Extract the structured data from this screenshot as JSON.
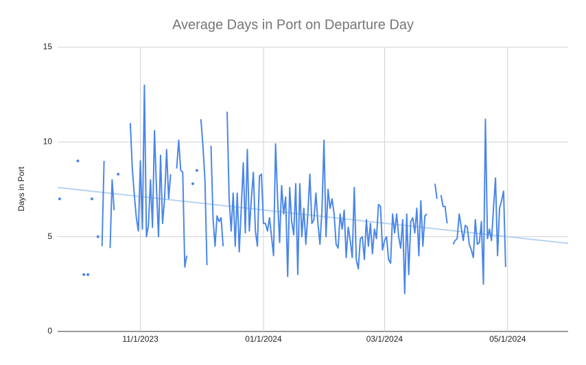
{
  "chart_data": {
    "type": "line",
    "title": "Average Days in Port on Departure Day",
    "y_label": "Days in Port",
    "xlim": [
      "2023-09-21",
      "2024-05-31"
    ],
    "xticks": [
      {
        "value": "2023-11-01",
        "label": "11/1/2023"
      },
      {
        "value": "2024-01-01",
        "label": "01/1/2024"
      },
      {
        "value": "2024-03-01",
        "label": "03/1/2024"
      },
      {
        "value": "2024-05-01",
        "label": "05/1/2024"
      }
    ],
    "ylim": [
      0,
      15
    ],
    "yticks": [
      0,
      5,
      10,
      15
    ],
    "grid": true,
    "trendline": {
      "color": "#b7d3f2",
      "values": [
        7.6,
        4.65
      ]
    },
    "x": [
      "2023-09-22",
      "2023-09-23",
      "2023-09-24",
      "2023-09-25",
      "2023-09-26",
      "2023-09-27",
      "2023-09-28",
      "2023-09-29",
      "2023-09-30",
      "2023-10-01",
      "2023-10-02",
      "2023-10-03",
      "2023-10-04",
      "2023-10-05",
      "2023-10-06",
      "2023-10-07",
      "2023-10-08",
      "2023-10-09",
      "2023-10-10",
      "2023-10-11",
      "2023-10-12",
      "2023-10-13",
      "2023-10-14",
      "2023-10-15",
      "2023-10-16",
      "2023-10-17",
      "2023-10-18",
      "2023-10-19",
      "2023-10-20",
      "2023-10-21",
      "2023-10-22",
      "2023-10-23",
      "2023-10-24",
      "2023-10-25",
      "2023-10-26",
      "2023-10-27",
      "2023-10-28",
      "2023-10-29",
      "2023-10-30",
      "2023-10-31",
      "2023-11-01",
      "2023-11-02",
      "2023-11-03",
      "2023-11-04",
      "2023-11-05",
      "2023-11-06",
      "2023-11-07",
      "2023-11-08",
      "2023-11-09",
      "2023-11-10",
      "2023-11-11",
      "2023-11-12",
      "2023-11-13",
      "2023-11-14",
      "2023-11-15",
      "2023-11-16",
      "2023-11-17",
      "2023-11-18",
      "2023-11-19",
      "2023-11-20",
      "2023-11-21",
      "2023-11-22",
      "2023-11-23",
      "2023-11-24",
      "2023-11-25",
      "2023-11-26",
      "2023-11-27",
      "2023-11-28",
      "2023-11-29",
      "2023-11-30",
      "2023-12-01",
      "2023-12-02",
      "2023-12-03",
      "2023-12-04",
      "2023-12-05",
      "2023-12-06",
      "2023-12-07",
      "2023-12-08",
      "2023-12-09",
      "2023-12-10",
      "2023-12-11",
      "2023-12-12",
      "2023-12-13",
      "2023-12-14",
      "2023-12-15",
      "2023-12-16",
      "2023-12-17",
      "2023-12-18",
      "2023-12-19",
      "2023-12-20",
      "2023-12-21",
      "2023-12-22",
      "2023-12-23",
      "2023-12-24",
      "2023-12-25",
      "2023-12-26",
      "2023-12-27",
      "2023-12-28",
      "2023-12-29",
      "2023-12-30",
      "2023-12-31",
      "2024-01-01",
      "2024-01-02",
      "2024-01-03",
      "2024-01-04",
      "2024-01-05",
      "2024-01-06",
      "2024-01-07",
      "2024-01-08",
      "2024-01-09",
      "2024-01-10",
      "2024-01-11",
      "2024-01-12",
      "2024-01-13",
      "2024-01-14",
      "2024-01-15",
      "2024-01-16",
      "2024-01-17",
      "2024-01-18",
      "2024-01-19",
      "2024-01-20",
      "2024-01-21",
      "2024-01-22",
      "2024-01-23",
      "2024-01-24",
      "2024-01-25",
      "2024-01-26",
      "2024-01-27",
      "2024-01-28",
      "2024-01-29",
      "2024-01-30",
      "2024-01-31",
      "2024-02-01",
      "2024-02-02",
      "2024-02-03",
      "2024-02-04",
      "2024-02-05",
      "2024-02-06",
      "2024-02-07",
      "2024-02-08",
      "2024-02-09",
      "2024-02-10",
      "2024-02-11",
      "2024-02-12",
      "2024-02-13",
      "2024-02-14",
      "2024-02-15",
      "2024-02-16",
      "2024-02-17",
      "2024-02-18",
      "2024-02-19",
      "2024-02-20",
      "2024-02-21",
      "2024-02-22",
      "2024-02-23",
      "2024-02-24",
      "2024-02-25",
      "2024-02-26",
      "2024-02-27",
      "2024-02-28",
      "2024-02-29",
      "2024-03-01",
      "2024-03-02",
      "2024-03-03",
      "2024-03-04",
      "2024-03-05",
      "2024-03-06",
      "2024-03-07",
      "2024-03-08",
      "2024-03-09",
      "2024-03-10",
      "2024-03-11",
      "2024-03-12",
      "2024-03-13",
      "2024-03-14",
      "2024-03-15",
      "2024-03-16",
      "2024-03-17",
      "2024-03-18",
      "2024-03-19",
      "2024-03-20",
      "2024-03-21",
      "2024-03-22",
      "2024-03-23",
      "2024-03-24",
      "2024-03-25",
      "2024-03-26",
      "2024-03-27",
      "2024-03-28",
      "2024-03-29",
      "2024-03-30",
      "2024-03-31",
      "2024-04-01",
      "2024-04-02",
      "2024-04-03",
      "2024-04-04",
      "2024-04-05",
      "2024-04-06",
      "2024-04-07",
      "2024-04-08",
      "2024-04-09",
      "2024-04-10",
      "2024-04-11",
      "2024-04-12",
      "2024-04-13",
      "2024-04-14",
      "2024-04-15",
      "2024-04-16",
      "2024-04-17",
      "2024-04-18",
      "2024-04-19",
      "2024-04-20",
      "2024-04-21",
      "2024-04-22",
      "2024-04-23",
      "2024-04-24",
      "2024-04-25",
      "2024-04-26",
      "2024-04-27",
      "2024-04-28",
      "2024-04-29",
      "2024-04-30"
    ],
    "color": "#4a86e8",
    "values": [
      7,
      null,
      null,
      null,
      null,
      null,
      null,
      null,
      null,
      9,
      null,
      null,
      3,
      null,
      3,
      null,
      7,
      null,
      null,
      5,
      null,
      4.5,
      9,
      null,
      null,
      4.4,
      8,
      6.4,
      null,
      8.3,
      null,
      null,
      null,
      null,
      null,
      11,
      8.6,
      7.2,
      6,
      5.3,
      9,
      5.4,
      13,
      5,
      5.6,
      8,
      5.5,
      10.6,
      7.5,
      5,
      9.3,
      5.7,
      7,
      9.6,
      7,
      8.3,
      null,
      null,
      8.6,
      10.1,
      8.5,
      8.4,
      3.4,
      4,
      null,
      null,
      7.8,
      null,
      8.5,
      null,
      11.2,
      9.8,
      8,
      3.5,
      null,
      9.8,
      6,
      4.5,
      6.1,
      5.8,
      6,
      4.5,
      null,
      11.6,
      7,
      5.3,
      7.3,
      4.5,
      7.3,
      4.2,
      6.5,
      8.9,
      5.2,
      9.6,
      5.3,
      7,
      8.4,
      5.3,
      4.5,
      8.2,
      8.3,
      5.7,
      5.7,
      5.3,
      6,
      5,
      4,
      9.9,
      7,
      4.7,
      7.7,
      6.2,
      7.1,
      2.9,
      7.6,
      5.8,
      5.1,
      7.8,
      3,
      7.8,
      5,
      6.5,
      4.6,
      6.2,
      8.3,
      5.7,
      5.9,
      7.3,
      5.7,
      4.6,
      6.4,
      10.1,
      5,
      7.5,
      6.5,
      7,
      6.2,
      4.6,
      4.4,
      6.2,
      5.4,
      6.4,
      3.9,
      5.5,
      4.8,
      3.9,
      7.6,
      3.8,
      3.3,
      4.9,
      5,
      3.8,
      5.9,
      4.5,
      5.7,
      4.1,
      5.4,
      4.9,
      6.7,
      6.6,
      4.3,
      4.8,
      5,
      3.8,
      3.6,
      6.2,
      5.2,
      6.2,
      5,
      4.4,
      5.9,
      2,
      6.2,
      3,
      5.8,
      6,
      5.2,
      6.5,
      4,
      6.9,
      4.5,
      6.1,
      6.2,
      null,
      null,
      null,
      7.8,
      7,
      null,
      7.2,
      6.6,
      6.6,
      5.7,
      null,
      null,
      4.6,
      4.8,
      4.9,
      6.2,
      5.5,
      4.8,
      5.6,
      5.5,
      4.6,
      4.3,
      3.9,
      5.9,
      4.6,
      4.7,
      5.8,
      2.5,
      11.2,
      4.9,
      5.4,
      4.8,
      6.5,
      8.1,
      4,
      6.5,
      6.9,
      7.4,
      3.4
    ]
  }
}
